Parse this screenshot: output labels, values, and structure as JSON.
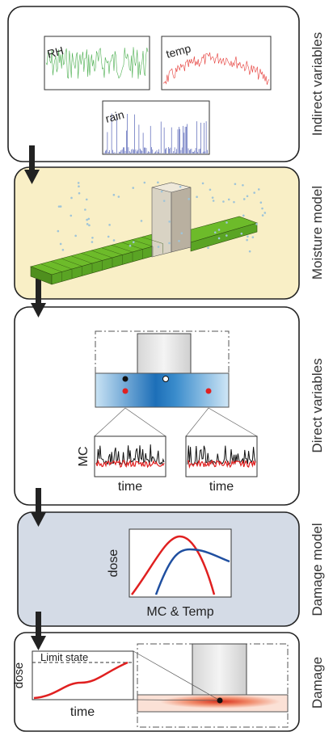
{
  "panels": [
    {
      "label": "Indirect variables",
      "plot_labels": [
        "RH",
        "temp",
        "rain"
      ]
    },
    {
      "label": "Moisture model"
    },
    {
      "label": "Direct variables",
      "y_label": "MC",
      "x_labels": [
        "time",
        "time"
      ]
    },
    {
      "label": "Damage model",
      "y_label": "dose",
      "x_label": "MC & Temp"
    },
    {
      "label": "Damage",
      "y_label": "dose",
      "x_label": "time",
      "annotation": "Limit state"
    }
  ]
}
